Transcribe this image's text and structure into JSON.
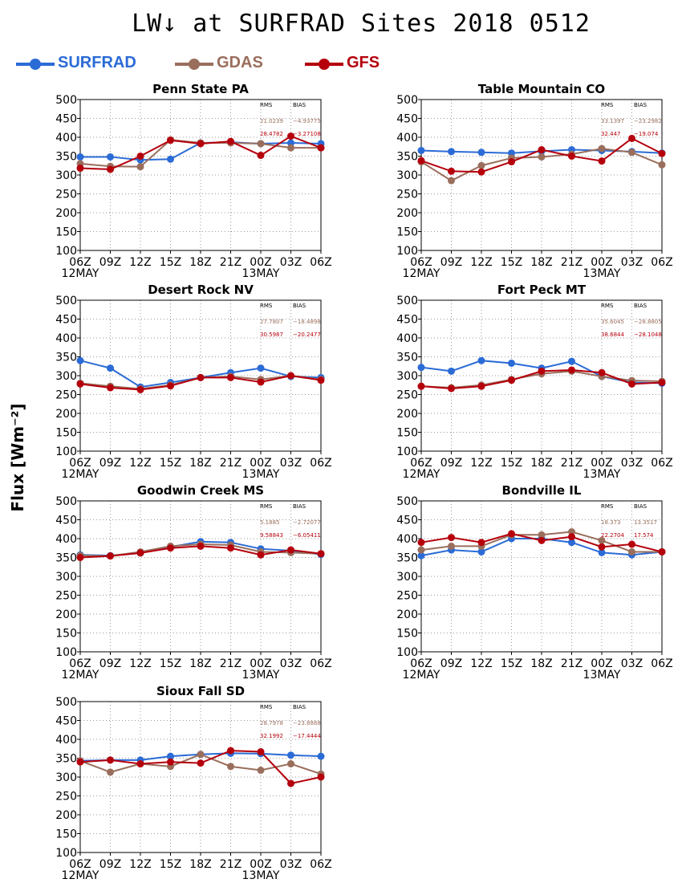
{
  "title": "LW↓ at SURFRAD Sites     2018 0512",
  "yaxis_title": "Flux [Wm⁻²]",
  "colors": {
    "SURFRAD": "#2b6bd6",
    "GDAS": "#9a6e5c",
    "GFS": "#b5000c",
    "grid": "#9a9a9a"
  },
  "legend": [
    {
      "name": "SURFRAD",
      "color": "#2b6bd6"
    },
    {
      "name": "GDAS",
      "color": "#9a6e5c"
    },
    {
      "name": "GFS",
      "color": "#b5000c"
    }
  ],
  "stats_headers": {
    "rms": "RMS",
    "bias": "BIAS"
  },
  "chart_data": [
    {
      "type": "line",
      "title": "Penn State PA",
      "x": [
        "06Z",
        "09Z",
        "12Z",
        "15Z",
        "18Z",
        "21Z",
        "00Z",
        "03Z",
        "06Z"
      ],
      "date_labels": [
        "12MAY",
        "13MAY"
      ],
      "ylim": [
        100,
        500
      ],
      "yticks": [
        100,
        150,
        200,
        250,
        300,
        350,
        400,
        450,
        500
      ],
      "grid": true,
      "series": [
        {
          "name": "SURFRAD",
          "values": [
            348,
            348,
            340,
            342,
            385,
            387,
            383,
            385,
            383
          ]
        },
        {
          "name": "GDAS",
          "values": [
            330,
            323,
            322,
            393,
            385,
            385,
            383,
            372,
            372
          ]
        },
        {
          "name": "GFS",
          "values": [
            318,
            315,
            350,
            392,
            383,
            389,
            352,
            403,
            372
          ]
        }
      ],
      "stats": {
        "GDAS": {
          "rms": "21.0239",
          "bias": "−4.93775"
        },
        "GFS": {
          "rms": "28.4782",
          "bias": "−3.27108"
        }
      }
    },
    {
      "type": "line",
      "title": "Table Mountain CO",
      "x": [
        "06Z",
        "09Z",
        "12Z",
        "15Z",
        "18Z",
        "21Z",
        "00Z",
        "03Z",
        "06Z"
      ],
      "date_labels": [
        "12MAY",
        "13MAY"
      ],
      "ylim": [
        100,
        500
      ],
      "yticks": [
        100,
        150,
        200,
        250,
        300,
        350,
        400,
        450,
        500
      ],
      "grid": true,
      "series": [
        {
          "name": "SURFRAD",
          "values": [
            365,
            362,
            360,
            358,
            363,
            367,
            365,
            362,
            358
          ]
        },
        {
          "name": "GDAS",
          "values": [
            335,
            285,
            325,
            345,
            348,
            355,
            370,
            360,
            327
          ]
        },
        {
          "name": "GFS",
          "values": [
            338,
            310,
            308,
            335,
            367,
            350,
            337,
            397,
            357
          ]
        }
      ],
      "stats": {
        "GDAS": {
          "rms": "33.1397",
          "bias": "−23.2982"
        },
        "GFS": {
          "rms": "32.447",
          "bias": "−19.074"
        }
      }
    },
    {
      "type": "line",
      "title": "Desert Rock NV",
      "x": [
        "06Z",
        "09Z",
        "12Z",
        "15Z",
        "18Z",
        "21Z",
        "00Z",
        "03Z",
        "06Z"
      ],
      "date_labels": [
        "12MAY",
        "13MAY"
      ],
      "ylim": [
        100,
        500
      ],
      "yticks": [
        100,
        150,
        200,
        250,
        300,
        350,
        400,
        450,
        500
      ],
      "grid": true,
      "series": [
        {
          "name": "SURFRAD",
          "values": [
            340,
            320,
            270,
            282,
            295,
            308,
            320,
            298,
            295
          ]
        },
        {
          "name": "GDAS",
          "values": [
            280,
            272,
            265,
            275,
            295,
            298,
            290,
            300,
            290
          ]
        },
        {
          "name": "GFS",
          "values": [
            278,
            268,
            263,
            273,
            295,
            295,
            283,
            300,
            288
          ]
        }
      ],
      "stats": {
        "GDAS": {
          "rms": "27.7807",
          "bias": "−18.4898"
        },
        "GFS": {
          "rms": "30.5987",
          "bias": "−20.2477"
        }
      }
    },
    {
      "type": "line",
      "title": "Fort Peck MT",
      "x": [
        "06Z",
        "09Z",
        "12Z",
        "15Z",
        "18Z",
        "21Z",
        "00Z",
        "03Z",
        "06Z"
      ],
      "date_labels": [
        "12MAY",
        "13MAY"
      ],
      "ylim": [
        100,
        500
      ],
      "yticks": [
        100,
        150,
        200,
        250,
        300,
        350,
        400,
        450,
        500
      ],
      "grid": true,
      "series": [
        {
          "name": "SURFRAD",
          "values": [
            322,
            312,
            340,
            333,
            320,
            338,
            298,
            282,
            280
          ]
        },
        {
          "name": "GDAS",
          "values": [
            272,
            268,
            275,
            290,
            305,
            312,
            298,
            287,
            285
          ]
        },
        {
          "name": "GFS",
          "values": [
            272,
            266,
            272,
            288,
            312,
            315,
            308,
            278,
            282
          ]
        }
      ],
      "stats": {
        "GDAS": {
          "rms": "35.6045",
          "bias": "−28.8805"
        },
        "GFS": {
          "rms": "38.6844",
          "bias": "−28.1048"
        }
      }
    },
    {
      "type": "line",
      "title": "Goodwin Creek MS",
      "x": [
        "06Z",
        "09Z",
        "12Z",
        "15Z",
        "18Z",
        "21Z",
        "00Z",
        "03Z",
        "06Z"
      ],
      "date_labels": [
        "12MAY",
        "13MAY"
      ],
      "ylim": [
        100,
        500
      ],
      "yticks": [
        100,
        150,
        200,
        250,
        300,
        350,
        400,
        450,
        500
      ],
      "grid": true,
      "series": [
        {
          "name": "SURFRAD",
          "values": [
            357,
            355,
            362,
            378,
            392,
            390,
            373,
            368,
            358
          ]
        },
        {
          "name": "GDAS",
          "values": [
            355,
            354,
            365,
            380,
            385,
            383,
            365,
            363,
            360
          ]
        },
        {
          "name": "GFS",
          "values": [
            350,
            354,
            362,
            375,
            380,
            375,
            357,
            370,
            360
          ]
        }
      ],
      "stats": {
        "GDAS": {
          "rms": "5.1885",
          "bias": "−2.72077"
        },
        "GFS": {
          "rms": "9.58843",
          "bias": "−6.05411"
        }
      }
    },
    {
      "type": "line",
      "title": "Bondville IL",
      "x": [
        "06Z",
        "09Z",
        "12Z",
        "15Z",
        "18Z",
        "21Z",
        "00Z",
        "03Z",
        "06Z"
      ],
      "date_labels": [
        "12MAY",
        "13MAY"
      ],
      "ylim": [
        100,
        500
      ],
      "yticks": [
        100,
        150,
        200,
        250,
        300,
        350,
        400,
        450,
        500
      ],
      "grid": true,
      "series": [
        {
          "name": "SURFRAD",
          "values": [
            355,
            370,
            365,
            400,
            400,
            390,
            363,
            357,
            365
          ]
        },
        {
          "name": "GDAS",
          "values": [
            370,
            380,
            380,
            410,
            410,
            418,
            395,
            365,
            365
          ]
        },
        {
          "name": "GFS",
          "values": [
            390,
            403,
            390,
            413,
            395,
            405,
            378,
            385,
            365
          ]
        }
      ],
      "stats": {
        "GDAS": {
          "rms": "18.373",
          "bias": "13.3517"
        },
        "GFS": {
          "rms": "22.2704",
          "bias": "17.574"
        }
      }
    },
    {
      "type": "line",
      "title": "Sioux Fall SD",
      "x": [
        "06Z",
        "09Z",
        "12Z",
        "15Z",
        "18Z",
        "21Z",
        "00Z",
        "03Z",
        "06Z"
      ],
      "date_labels": [
        "12MAY",
        "13MAY"
      ],
      "ylim": [
        100,
        500
      ],
      "yticks": [
        100,
        150,
        200,
        250,
        300,
        350,
        400,
        450,
        500
      ],
      "grid": true,
      "series": [
        {
          "name": "SURFRAD",
          "values": [
            343,
            345,
            345,
            355,
            360,
            363,
            362,
            358,
            355
          ]
        },
        {
          "name": "GDAS",
          "values": [
            343,
            313,
            335,
            328,
            360,
            328,
            318,
            335,
            308
          ]
        },
        {
          "name": "GFS",
          "values": [
            340,
            345,
            335,
            340,
            337,
            370,
            367,
            283,
            300
          ]
        }
      ],
      "stats": {
        "GDAS": {
          "rms": "28.7978",
          "bias": "−23.8888"
        },
        "GFS": {
          "rms": "32.1992",
          "bias": "−17.4444"
        }
      }
    }
  ]
}
